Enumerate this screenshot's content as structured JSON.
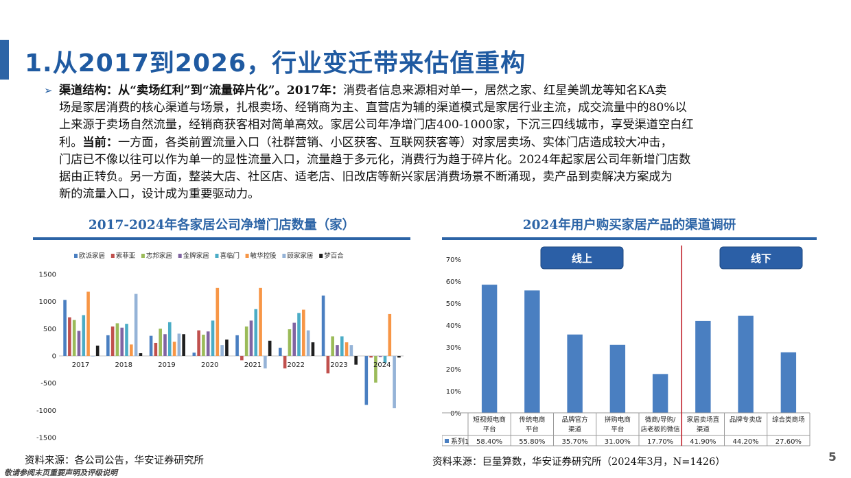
{
  "page": {
    "title": "1.从2017到2026，行业变迁带来估值重构",
    "page_number": "5",
    "footer_note": "敬请参阅末页重要声明及评级说明"
  },
  "bullet": {
    "line1_bold_a": "渠道结构：从“卖场红利”到“流量碎片化”。2017年：",
    "line1_rest": "消费者信息来源相对单一，居然之家、红星美凯龙等知名KA卖",
    "line2": "场是家居消费的核心渠道与场景，扎根卖场、经销商为主、直营店为辅的渠道模式是家居行业主流，成交流量中的80%以",
    "line3": "上来源于卖场自然流量，经销商获客相对简单高效。家居公司年净增门店400-1000家，下沉三四线城市，享受渠道空白红",
    "line4_a": "利。",
    "line4_bold": "当前：",
    "line4_rest": "一方面，各类前置流量入口（社群营销、小区获客、互联网获客等）对家居卖场、实体门店造成较大冲击，",
    "line5": "门店已不像以往可以作为单一的显性流量入口，流量趋于多元化，消费行为趋于碎片化。2024年起家居公司年新增门店数",
    "line6": "据由正转负。另一方面，整装大店、社区店、适老店、旧改店等新兴家居消费场景不断涌现，卖产品到卖解决方案成为",
    "line7": "新的流量入口，设计成为重要驱动力。"
  },
  "left_chart": {
    "heading": "2017-2024年各家居公司净增门店数量（家）",
    "source": "资料来源：各公司公告，华安证券研究所"
  },
  "right_chart": {
    "heading": "2024年用户购买家居产品的渠道调研",
    "source": "资料来源：巨量算数，华安证券研究所（2024年3月，N=1426）",
    "online_label": "线上",
    "offline_label": "线下",
    "series_row_label": "系列1"
  },
  "chart_data": [
    {
      "type": "bar",
      "title": "2017-2024年各家居公司净增门店数量（家）",
      "categories": [
        "2017",
        "2018",
        "2019",
        "2020",
        "2021",
        "2022",
        "2023",
        "2024"
      ],
      "ylim": [
        -1500,
        1500
      ],
      "yticks": [
        1500,
        1000,
        500,
        0,
        -500,
        -1000,
        -1500
      ],
      "legend_position": "top",
      "grid": false,
      "series": [
        {
          "name": "欧派家居",
          "color": "#4a7fc1",
          "values": [
            1030,
            380,
            370,
            60,
            380,
            150,
            1110,
            -900
          ]
        },
        {
          "name": "索菲亚",
          "color": "#c0504d",
          "values": [
            710,
            540,
            240,
            470,
            -80,
            -230,
            -320,
            -30
          ]
        },
        {
          "name": "志邦家居",
          "color": "#9bbb59",
          "values": [
            660,
            600,
            500,
            390,
            540,
            490,
            360,
            -490
          ]
        },
        {
          "name": "金牌家居",
          "color": "#8064a2",
          "values": [
            460,
            520,
            400,
            450,
            650,
            610,
            200,
            -20
          ]
        },
        {
          "name": "喜临门",
          "color": "#4bacc6",
          "values": [
            750,
            590,
            620,
            650,
            860,
            790,
            360,
            -130
          ]
        },
        {
          "name": "敏华控股",
          "color": "#f79646",
          "values": [
            1180,
            210,
            260,
            1250,
            1250,
            850,
            250,
            770
          ]
        },
        {
          "name": "顾家家居",
          "color": "#95b3d7",
          "values": [
            -10,
            1140,
            410,
            200,
            -230,
            470,
            200,
            -960
          ]
        },
        {
          "name": "梦百合",
          "color": "#1f1f1f",
          "values": [
            190,
            50,
            400,
            300,
            280,
            250,
            -160,
            -30
          ]
        }
      ]
    },
    {
      "type": "bar",
      "title": "2024年用户购买家居产品的渠道调研",
      "categories": [
        "短视频电商平台",
        "传统电商平台",
        "品牌官方渠道",
        "拼购电商平台",
        "微商/导购/店老板的微信",
        "家居卖场直渠道",
        "品牌专卖店",
        "综合类商场"
      ],
      "ylim": [
        0,
        0.7
      ],
      "yticks": [
        "0%",
        "10%",
        "20%",
        "30%",
        "40%",
        "50%",
        "60%",
        "70%"
      ],
      "series": [
        {
          "name": "系列1",
          "color": "#4a7fc1",
          "values": [
            0.584,
            0.558,
            0.357,
            0.31,
            0.177,
            0.419,
            0.442,
            0.276
          ],
          "labels": [
            "58.40%",
            "55.80%",
            "35.70%",
            "31.00%",
            "17.70%",
            "41.90%",
            "44.20%",
            "27.60%"
          ]
        }
      ],
      "groups": [
        {
          "label": "线上",
          "range": [
            0,
            4
          ]
        },
        {
          "label": "线下",
          "range": [
            5,
            7
          ]
        }
      ]
    }
  ]
}
